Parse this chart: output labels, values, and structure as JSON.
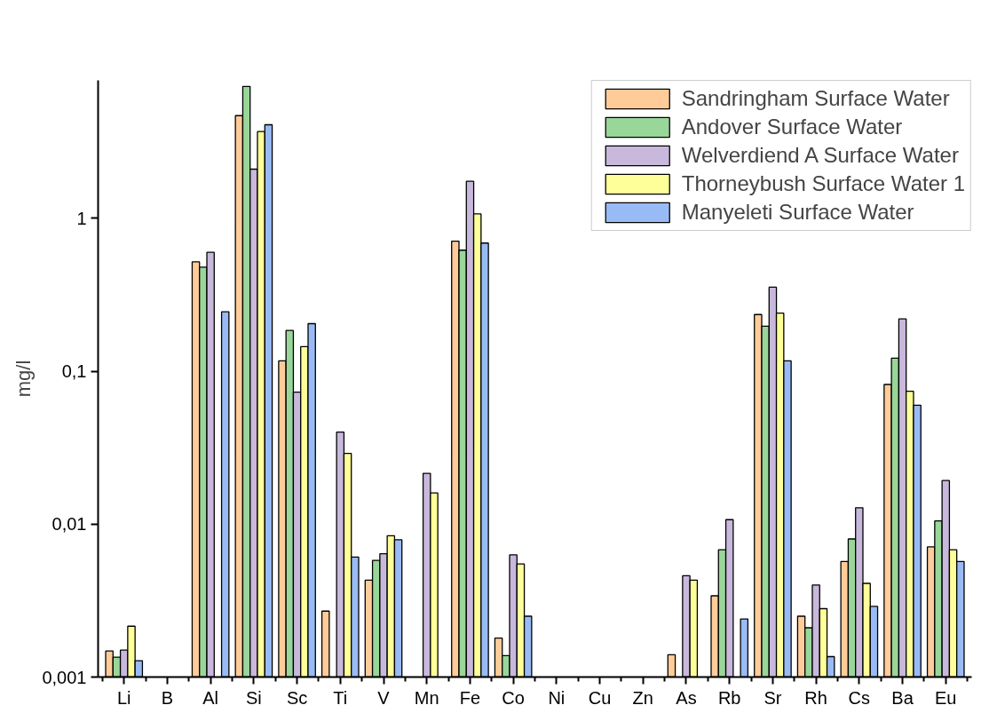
{
  "chart_data": {
    "type": "bar",
    "ylabel": "mg/l",
    "log": "y",
    "categories": [
      "Li",
      "B",
      "Al",
      "Si",
      "Sc",
      "Ti",
      "V",
      "Mn",
      "Fe",
      "Co",
      "Ni",
      "Cu",
      "Zn",
      "As",
      "Rb",
      "Sr",
      "Rh",
      "Cs",
      "Ba",
      "Eu"
    ],
    "ylim": [
      0.001,
      8
    ],
    "yticks": [
      {
        "value": 0.001,
        "label": "0,001"
      },
      {
        "value": 0.01,
        "label": "0,01"
      },
      {
        "value": 0.1,
        "label": "0,1"
      },
      {
        "value": 1,
        "label": "1"
      }
    ],
    "grid": false,
    "legend": "top right",
    "series": [
      {
        "name": "Sandringham Surface Water",
        "color": "#ffcc99",
        "values": [
          0.00148,
          null,
          0.52,
          4.7,
          0.117,
          0.0027,
          0.0043,
          null,
          0.71,
          0.0018,
          null,
          null,
          null,
          0.0014,
          0.0034,
          0.235,
          0.0025,
          0.0057,
          0.082,
          0.0071
        ]
      },
      {
        "name": "Andover Surface Water",
        "color": "#99d699",
        "values": [
          0.00135,
          null,
          0.48,
          7.3,
          0.185,
          null,
          0.0058,
          null,
          0.62,
          0.00138,
          null,
          null,
          null,
          null,
          0.0068,
          0.197,
          0.0021,
          0.008,
          0.122,
          0.0105
        ]
      },
      {
        "name": "Welverdiend A Surface Water",
        "color": "#c8b8dc",
        "values": [
          0.0015,
          null,
          0.6,
          2.1,
          0.073,
          0.04,
          0.0064,
          0.0215,
          1.75,
          0.0063,
          null,
          null,
          null,
          0.0046,
          0.0107,
          0.355,
          0.004,
          0.0128,
          0.22,
          0.0193
        ]
      },
      {
        "name": "Thorneybush Surface Water 1",
        "color": "#ffff99",
        "values": [
          0.00215,
          null,
          null,
          3.7,
          0.145,
          0.029,
          0.0084,
          0.016,
          1.07,
          0.0055,
          null,
          null,
          null,
          0.0043,
          null,
          0.24,
          0.0028,
          0.0041,
          0.074,
          0.0068
        ]
      },
      {
        "name": "Manyeleti Surface Water",
        "color": "#99bbf5",
        "values": [
          0.00128,
          null,
          0.245,
          4.1,
          0.205,
          0.0061,
          0.0079,
          null,
          0.69,
          0.0025,
          null,
          null,
          null,
          null,
          0.0024,
          0.117,
          0.00136,
          0.0029,
          0.06,
          0.0057
        ]
      }
    ]
  }
}
